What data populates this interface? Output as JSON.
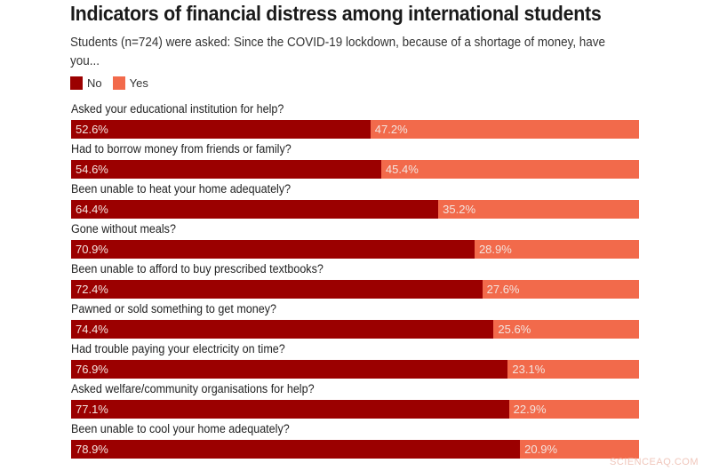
{
  "header": {
    "title": "Indicators of financial distress among international students",
    "subtitle": "Students (n=724) were asked: Since the COVID-19 lockdown, because of a shortage of money, have you..."
  },
  "legend": [
    {
      "label": "No",
      "color": "#9b0000"
    },
    {
      "label": "Yes",
      "color": "#f26a4b"
    }
  ],
  "watermark": "SCIENCEAQ.COM",
  "chart_data": {
    "type": "bar",
    "orientation": "horizontal",
    "stacked": true,
    "title": "Indicators of financial distress among international students",
    "subtitle": "Students (n=724) were asked: Since the COVID-19 lockdown, because of a shortage of money, have you...",
    "xlabel": "",
    "ylabel": "",
    "xlim": [
      0,
      100
    ],
    "grid": false,
    "legend_position": "top-left",
    "categories": [
      "Asked your educational institution for help?",
      "Had to borrow money from friends or family?",
      "Been unable to heat your home adequately?",
      "Gone without meals?",
      "Been unable to afford to buy prescribed textbooks?",
      "Pawned or sold something to get money?",
      "Had trouble paying your electricity on time?",
      "Asked welfare/community organisations for help?",
      "Been unable to cool your home adequately?"
    ],
    "series": [
      {
        "name": "No",
        "color": "#9b0000",
        "values": [
          52.6,
          54.6,
          64.4,
          70.9,
          72.4,
          74.4,
          76.9,
          77.1,
          78.9
        ]
      },
      {
        "name": "Yes",
        "color": "#f26a4b",
        "values": [
          47.2,
          45.4,
          35.2,
          28.9,
          27.6,
          25.6,
          23.1,
          22.9,
          20.9
        ]
      }
    ],
    "value_labels": {
      "No": [
        "52.6%",
        "54.6%",
        "64.4%",
        "70.9%",
        "72.4%",
        "74.4%",
        "76.9%",
        "77.1%",
        "78.9%"
      ],
      "Yes": [
        "47.2%",
        "45.4%",
        "35.2%",
        "28.9%",
        "27.6%",
        "25.6%",
        "23.1%",
        "22.9%",
        "20.9%"
      ]
    }
  }
}
